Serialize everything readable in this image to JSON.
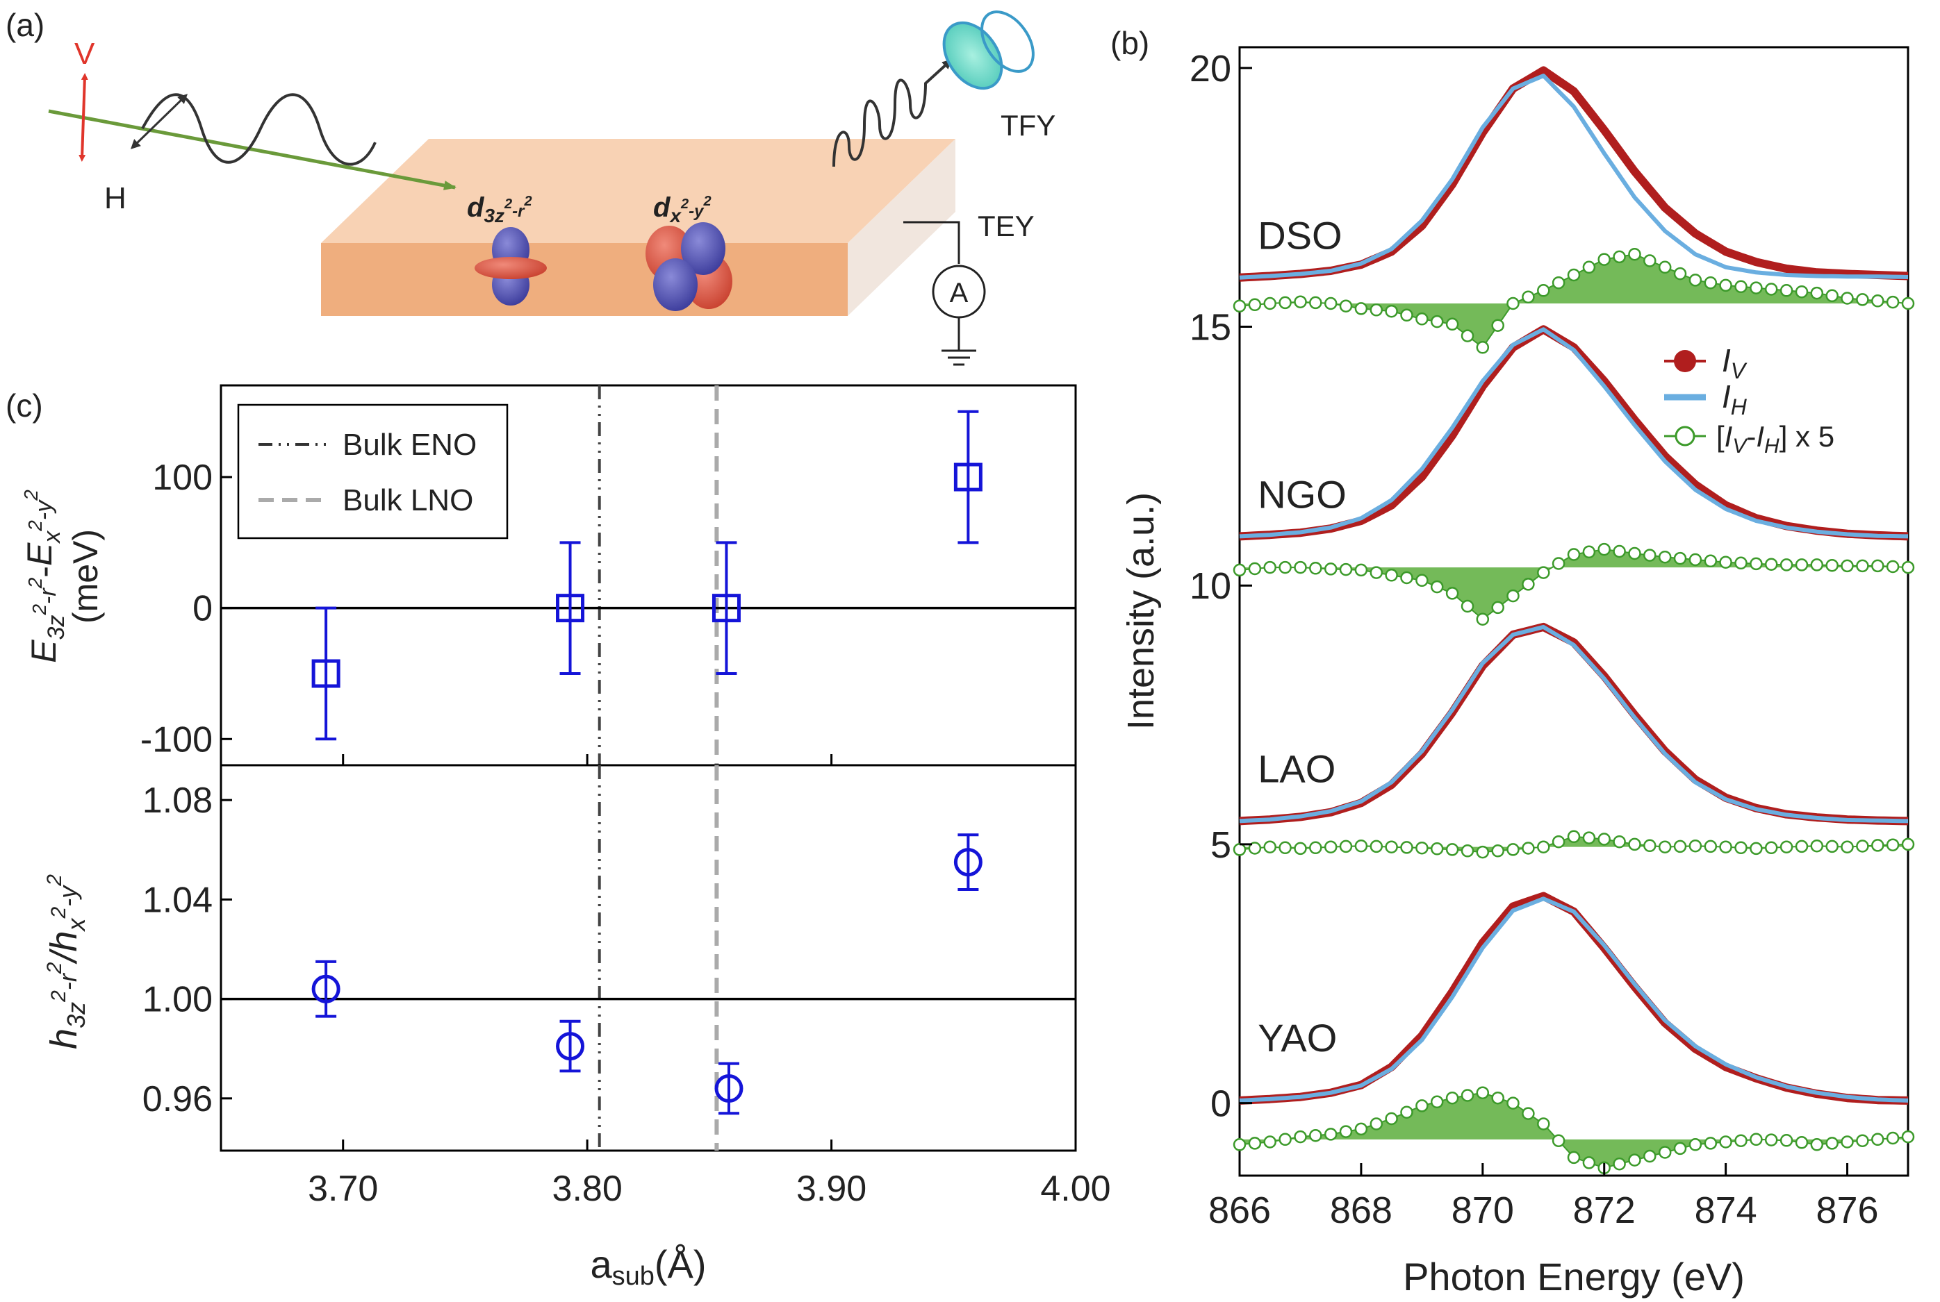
{
  "panel_labels": {
    "a": "(a)",
    "b": "(b)",
    "c": "(c)"
  },
  "schematic": {
    "pol_v": "V",
    "pol_h": "H",
    "orbital_1": {
      "base": "d",
      "sub": "3z",
      "sup1": "2",
      "mid": "-r",
      "sup2": "2"
    },
    "orbital_2": {
      "base": "d",
      "sub": "x",
      "sup1": "2",
      "mid": "-y",
      "sup2": "2"
    },
    "tfy": "TFY",
    "tey": "TEY",
    "ammeter": "A"
  },
  "colors": {
    "red": "#b01e1e",
    "blue": "#6aaee0",
    "green": "#3c9a2a",
    "green_fill": "#5cae3c",
    "marker_blue": "#1414d8",
    "arrow_red": "#e0352b",
    "slab_top": "#f6c6a0",
    "slab_front": "#efae7e",
    "beam_green": "#6a9a3a"
  },
  "chart_data": [
    {
      "id": "b",
      "type": "line",
      "xlabel": "Photon Energy (eV)",
      "ylabel": "Intensity (a.u.)",
      "xlim": [
        866,
        877
      ],
      "ylim": [
        -1.4,
        20.4
      ],
      "xticks": [
        866,
        868,
        870,
        872,
        874,
        876
      ],
      "yticks": [
        0,
        5,
        10,
        15,
        20
      ],
      "x": [
        866,
        866.5,
        867,
        867.5,
        868,
        868.5,
        869,
        869.5,
        870,
        870.5,
        871,
        871.5,
        872,
        872.5,
        873,
        873.5,
        874,
        874.5,
        875,
        875.5,
        876,
        876.5,
        877
      ],
      "series": [
        {
          "name": "DSO I_V",
          "role": "IV",
          "sample": "DSO",
          "values": [
            15.95,
            15.98,
            16.02,
            16.08,
            16.2,
            16.45,
            16.95,
            17.75,
            18.75,
            19.6,
            19.95,
            19.55,
            18.8,
            18.0,
            17.3,
            16.8,
            16.45,
            16.25,
            16.12,
            16.05,
            16.02,
            16.0,
            15.98
          ]
        },
        {
          "name": "DSO I_H",
          "role": "IH",
          "sample": "DSO",
          "values": [
            15.95,
            15.98,
            16.02,
            16.08,
            16.22,
            16.5,
            17.05,
            17.85,
            18.85,
            19.6,
            19.85,
            19.25,
            18.35,
            17.5,
            16.85,
            16.4,
            16.15,
            16.05,
            16.0,
            15.98,
            15.97,
            15.97,
            15.96
          ]
        },
        {
          "name": "DSO diff",
          "role": "diff",
          "sample": "DSO",
          "baseline": 15.45,
          "values": [
            15.4,
            15.45,
            15.48,
            15.45,
            15.35,
            15.3,
            15.15,
            15.05,
            14.6,
            15.45,
            15.7,
            16.0,
            16.3,
            16.4,
            16.15,
            15.9,
            15.8,
            15.75,
            15.7,
            15.65,
            15.55,
            15.5,
            15.45
          ]
        },
        {
          "name": "NGO I_V",
          "role": "IV",
          "sample": "NGO",
          "values": [
            10.95,
            10.98,
            11.02,
            11.1,
            11.25,
            11.55,
            12.1,
            12.9,
            13.85,
            14.6,
            14.95,
            14.6,
            13.95,
            13.2,
            12.5,
            11.95,
            11.55,
            11.3,
            11.15,
            11.06,
            11.0,
            10.97,
            10.95
          ]
        },
        {
          "name": "NGO I_H",
          "role": "IH",
          "sample": "NGO",
          "values": [
            10.95,
            10.98,
            11.03,
            11.12,
            11.3,
            11.65,
            12.25,
            13.05,
            13.95,
            14.65,
            14.95,
            14.55,
            13.85,
            13.1,
            12.4,
            11.85,
            11.48,
            11.25,
            11.12,
            11.04,
            10.99,
            10.96,
            10.95
          ]
        },
        {
          "name": "NGO diff",
          "role": "diff",
          "sample": "NGO",
          "baseline": 10.35,
          "values": [
            10.3,
            10.35,
            10.35,
            10.32,
            10.3,
            10.2,
            10.1,
            9.85,
            9.35,
            9.8,
            10.25,
            10.6,
            10.7,
            10.62,
            10.55,
            10.5,
            10.45,
            10.42,
            10.4,
            10.4,
            10.38,
            10.38,
            10.35
          ]
        },
        {
          "name": "LAO I_V",
          "role": "IV",
          "sample": "LAO",
          "values": [
            5.45,
            5.48,
            5.53,
            5.62,
            5.8,
            6.15,
            6.75,
            7.55,
            8.45,
            9.05,
            9.2,
            8.9,
            8.25,
            7.5,
            6.8,
            6.25,
            5.9,
            5.7,
            5.58,
            5.52,
            5.48,
            5.46,
            5.45
          ]
        },
        {
          "name": "LAO I_H",
          "role": "IH",
          "sample": "LAO",
          "values": [
            5.45,
            5.48,
            5.54,
            5.64,
            5.83,
            6.2,
            6.8,
            7.6,
            8.5,
            9.05,
            9.2,
            8.85,
            8.2,
            7.45,
            6.75,
            6.2,
            5.87,
            5.68,
            5.57,
            5.51,
            5.47,
            5.46,
            5.45
          ]
        },
        {
          "name": "LAO diff",
          "role": "diff",
          "sample": "LAO",
          "baseline": 4.95,
          "values": [
            4.9,
            4.95,
            4.92,
            4.95,
            4.97,
            4.95,
            4.93,
            4.9,
            4.85,
            4.9,
            4.95,
            5.15,
            5.1,
            5.0,
            4.95,
            4.97,
            4.95,
            4.92,
            4.95,
            4.97,
            4.95,
            4.98,
            5.0
          ]
        },
        {
          "name": "YAO I_V",
          "role": "IV",
          "sample": "YAO",
          "values": [
            0.05,
            0.08,
            0.12,
            0.2,
            0.35,
            0.7,
            1.3,
            2.15,
            3.1,
            3.8,
            4.0,
            3.7,
            3.0,
            2.25,
            1.55,
            1.05,
            0.7,
            0.48,
            0.3,
            0.18,
            0.1,
            0.06,
            0.05
          ]
        },
        {
          "name": "YAO I_H",
          "role": "IH",
          "sample": "YAO",
          "values": [
            0.05,
            0.08,
            0.12,
            0.2,
            0.34,
            0.66,
            1.22,
            2.05,
            3.0,
            3.72,
            3.95,
            3.7,
            3.05,
            2.3,
            1.6,
            1.1,
            0.75,
            0.5,
            0.32,
            0.2,
            0.12,
            0.07,
            0.05
          ]
        },
        {
          "name": "YAO diff",
          "role": "diff",
          "sample": "YAO",
          "baseline": -0.7,
          "values": [
            -0.8,
            -0.75,
            -0.65,
            -0.6,
            -0.5,
            -0.3,
            -0.05,
            0.1,
            0.2,
            0.0,
            -0.4,
            -1.05,
            -1.25,
            -1.1,
            -0.95,
            -0.8,
            -0.75,
            -0.7,
            -0.72,
            -0.8,
            -0.75,
            -0.7,
            -0.65
          ]
        }
      ],
      "sample_labels": [
        {
          "text": "DSO",
          "x": 866.3,
          "y": 16.5
        },
        {
          "text": "NGO",
          "x": 866.3,
          "y": 11.5
        },
        {
          "text": "LAO",
          "x": 866.3,
          "y": 6.2
        },
        {
          "text": "YAO",
          "x": 866.3,
          "y": 1.0
        }
      ],
      "legend": {
        "position": "right-middle",
        "iv": {
          "base": "I",
          "sub": "V"
        },
        "ih": {
          "base": "I",
          "sub": "H"
        },
        "diff": {
          "open": "[",
          "i1": "I",
          "s1": "V",
          "dash": "-",
          "i2": "I",
          "s2": "H",
          "close": "] x 5"
        }
      }
    },
    {
      "id": "c-top",
      "type": "scatter",
      "ylabel": {
        "line1": {
          "e1": "E",
          "s1": "3z",
          "p1": "2",
          "m1": "-r",
          "p2": "2",
          "dash": "-",
          "e2": "E",
          "s2": "x",
          "p3": "2",
          "m2": "-y",
          "p4": "2"
        },
        "line2": "(meV)"
      },
      "xlim": [
        3.65,
        4.0
      ],
      "ylim": [
        -120,
        170
      ],
      "yticks": [
        -100,
        0,
        100
      ],
      "ytick_labels": [
        "-100",
        "0",
        "100"
      ],
      "hline": 0,
      "points": [
        {
          "x": 3.693,
          "y": -50,
          "err": 50
        },
        {
          "x": 3.793,
          "y": 0,
          "err": 50
        },
        {
          "x": 3.857,
          "y": 0,
          "err": 50
        },
        {
          "x": 3.956,
          "y": 100,
          "err": 50
        }
      ],
      "vlines": [
        {
          "x": 3.805,
          "style": "dash-dot",
          "name": "Bulk ENO"
        },
        {
          "x": 3.853,
          "style": "dashed",
          "name": "Bulk LNO"
        }
      ],
      "legend": {
        "position": "top-left",
        "entries": [
          "Bulk ENO",
          "Bulk LNO"
        ]
      }
    },
    {
      "id": "c-bottom",
      "type": "scatter",
      "xlabel": {
        "a": "a",
        "sub": "sub",
        "unit": "(Å)"
      },
      "ylabel": {
        "h1": "h",
        "s1": "3z",
        "p1": "2",
        "m1": "-r",
        "p2": "2",
        "slash": "/",
        "h2": "h",
        "s2": "x",
        "p3": "2",
        "m2": "-y",
        "p4": "2"
      },
      "xlim": [
        3.65,
        4.0
      ],
      "ylim": [
        0.939,
        1.094
      ],
      "xticks": [
        3.7,
        3.8,
        3.9,
        4.0
      ],
      "xtick_labels": [
        "3.70",
        "3.80",
        "3.90",
        "4.00"
      ],
      "yticks": [
        0.96,
        1.0,
        1.04,
        1.08
      ],
      "ytick_labels": [
        "0.96",
        "1.00",
        "1.04",
        "1.08"
      ],
      "hline": 1.0,
      "points": [
        {
          "x": 3.693,
          "y": 1.004,
          "err": 0.011
        },
        {
          "x": 3.793,
          "y": 0.981,
          "err": 0.01
        },
        {
          "x": 3.858,
          "y": 0.964,
          "err": 0.01
        },
        {
          "x": 3.956,
          "y": 1.055,
          "err": 0.011
        }
      ]
    }
  ]
}
